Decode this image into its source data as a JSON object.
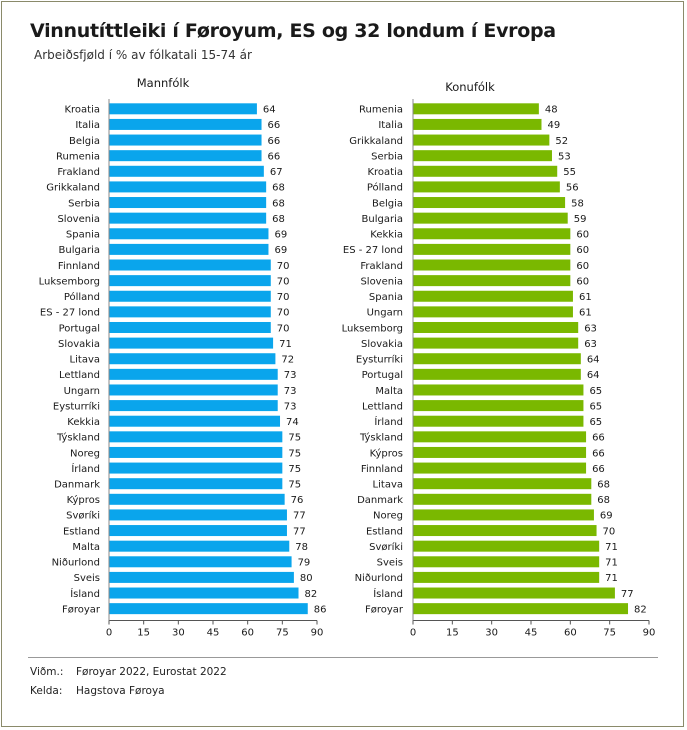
{
  "header": {
    "title": "Vinnutíttleiki í Føroyum, ES og 32 londum í Evropa",
    "subtitle": "Arbeiðsfjøld í % av fólkatali 15-74 ár"
  },
  "footer": {
    "note_label": "Viðm.:",
    "note_text": "Føroyar 2022, Eurostat 2022",
    "source_label": "Kelda:",
    "source_text": "Hagstova Føroya"
  },
  "colors": {
    "men": "#0aa5ec",
    "women": "#7ab800"
  },
  "chart_data": [
    {
      "type": "bar",
      "orientation": "horizontal",
      "title": "Mannfólk",
      "xlim": [
        0,
        90
      ],
      "xticks": [
        0,
        15,
        30,
        45,
        60,
        75,
        90
      ],
      "grid": false,
      "categories": [
        "Kroatia",
        "Italia",
        "Belgia",
        "Rumenia",
        "Frakland",
        "Grikkaland",
        "Serbia",
        "Slovenia",
        "Spania",
        "Bulgaria",
        "Finnland",
        "Luksemborg",
        "Pólland",
        "ES - 27 lond",
        "Portugal",
        "Slovakia",
        "Litava",
        "Lettland",
        "Ungarn",
        "Eysturríki",
        "Kekkia",
        "Týskland",
        "Noreg",
        "Írland",
        "Danmark",
        "Kýpros",
        "Svøríki",
        "Estland",
        "Malta",
        "Niðurlond",
        "Sveis",
        "Ísland",
        "Føroyar"
      ],
      "values": [
        64,
        66,
        66,
        66,
        67,
        68,
        68,
        68,
        69,
        69,
        70,
        70,
        70,
        70,
        70,
        71,
        72,
        73,
        73,
        73,
        74,
        75,
        75,
        75,
        75,
        76,
        77,
        77,
        78,
        79,
        80,
        82,
        86
      ]
    },
    {
      "type": "bar",
      "orientation": "horizontal",
      "title": "Konufólk",
      "xlim": [
        0,
        90
      ],
      "xticks": [
        0,
        15,
        30,
        45,
        60,
        75,
        90
      ],
      "grid": false,
      "categories": [
        "Rumenia",
        "Italia",
        "Grikkaland",
        "Serbia",
        "Kroatia",
        "Pólland",
        "Belgia",
        "Bulgaria",
        "Kekkia",
        "ES - 27 lond",
        "Frakland",
        "Slovenia",
        "Spania",
        "Ungarn",
        "Luksemborg",
        "Slovakia",
        "Eysturríki",
        "Portugal",
        "Malta",
        "Lettland",
        "Írland",
        "Týskland",
        "Kýpros",
        "Finnland",
        "Litava",
        "Danmark",
        "Noreg",
        "Estland",
        "Svøríki",
        "Sveis",
        "Niðurlond",
        "Ísland",
        "Føroyar"
      ],
      "values": [
        48,
        49,
        52,
        53,
        55,
        56,
        58,
        59,
        60,
        60,
        60,
        60,
        61,
        61,
        63,
        63,
        64,
        64,
        65,
        65,
        65,
        66,
        66,
        66,
        68,
        68,
        69,
        70,
        71,
        71,
        71,
        77,
        82
      ]
    }
  ]
}
